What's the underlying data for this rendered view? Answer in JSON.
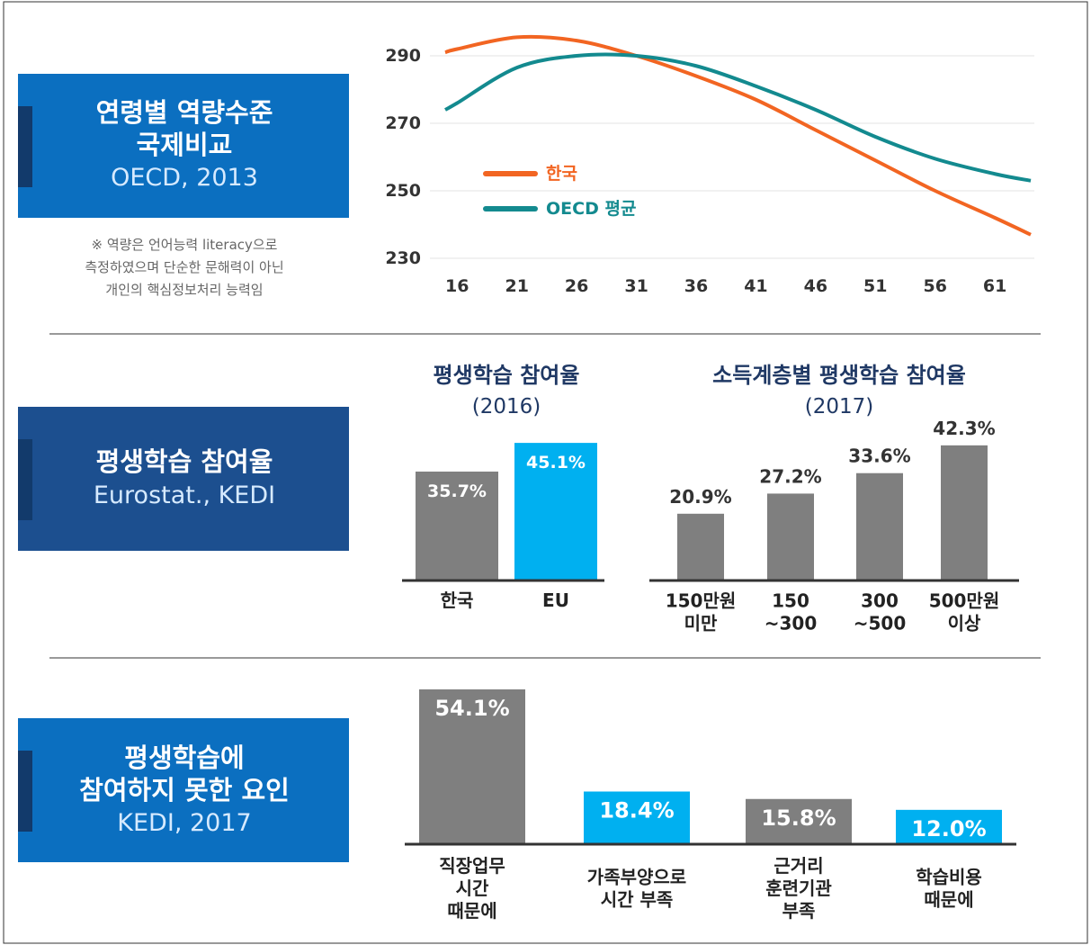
{
  "chart_data": [
    {
      "type": "line",
      "title": "연령별 역량수준\n국제비교",
      "subtitle": "OECD, 2013",
      "note": "※ 역량은 언어능력 literacy으로\n측정하였으며 단순한 문해력이 아닌\n개인의 핵심정보처리 능력임",
      "x": [
        15,
        16,
        21,
        26,
        31,
        36,
        41,
        46,
        51,
        56,
        61,
        64
      ],
      "series": [
        {
          "name": "한국",
          "color": "#f26522",
          "values": [
            291,
            292,
            295.5,
            294.5,
            290,
            284,
            277,
            268,
            259,
            250,
            242,
            237
          ]
        },
        {
          "name": "OECD 평균",
          "color": "#138a8f",
          "values": [
            274,
            276,
            286.5,
            290,
            290,
            287,
            281,
            274,
            266,
            259.5,
            255,
            253
          ]
        }
      ],
      "xlim": [
        15,
        64
      ],
      "xticks": [
        16,
        21,
        26,
        31,
        36,
        41,
        46,
        51,
        56,
        61
      ],
      "ylim": [
        230,
        296
      ],
      "yticks": [
        230,
        250,
        270,
        290
      ],
      "grid": true
    },
    {
      "type": "bar",
      "panel_title": "평생학습 참여율",
      "panel_source": "Eurostat., KEDI",
      "title": "평생학습 참여율",
      "subtitle": "(2016)",
      "categories": [
        "한국",
        "EU"
      ],
      "values": [
        35.7,
        45.1
      ],
      "value_labels": [
        "35.7%",
        "45.1%"
      ],
      "colors": [
        "#7f7f7f",
        "#00b0f0"
      ]
    },
    {
      "type": "bar",
      "title": "소득계층별 평생학습 참여율",
      "subtitle": "(2017)",
      "categories": [
        "150만원\n미만",
        "150\n~300",
        "300\n~500",
        "500만원\n이상"
      ],
      "values": [
        20.9,
        27.2,
        33.6,
        42.3
      ],
      "value_labels": [
        "20.9%",
        "27.2%",
        "33.6%",
        "42.3%"
      ],
      "colors": [
        "#7f7f7f",
        "#7f7f7f",
        "#7f7f7f",
        "#7f7f7f"
      ]
    },
    {
      "type": "bar",
      "panel_title": "평생학습에\n참여하지 못한 요인",
      "panel_source": "KEDI, 2017",
      "categories": [
        "직장업무\n시간\n때문에",
        "가족부양으로\n시간 부족",
        "근거리\n훈련기관\n부족",
        "학습비용\n때문에"
      ],
      "values": [
        54.1,
        18.4,
        15.8,
        12.0
      ],
      "value_labels": [
        "54.1%",
        "18.4%",
        "15.8%",
        "12.0%"
      ],
      "colors": [
        "#7f7f7f",
        "#00b0f0",
        "#7f7f7f",
        "#00b0f0"
      ]
    }
  ]
}
